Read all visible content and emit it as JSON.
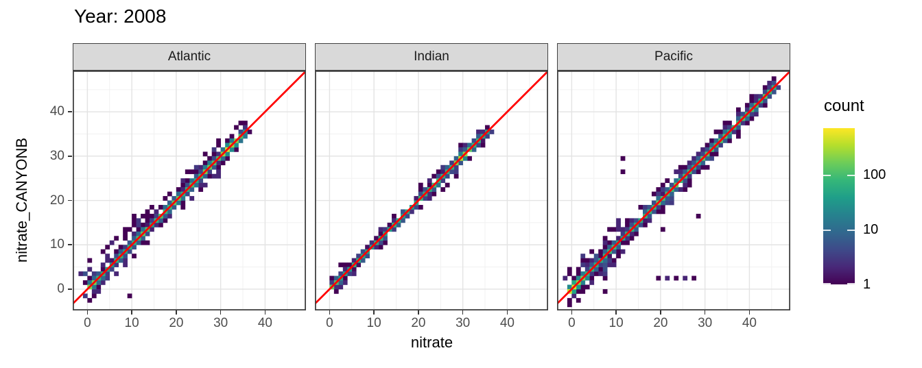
{
  "title": "Year: 2008",
  "axes": {
    "x": {
      "label": "nitrate",
      "ticks": [
        0,
        10,
        20,
        30,
        40
      ],
      "minor_ticks": [
        5,
        15,
        25,
        35,
        45
      ],
      "limits": [
        -3.3,
        49.2
      ]
    },
    "y": {
      "label": "nitrate_CANYONB",
      "ticks": [
        0,
        10,
        20,
        30,
        40
      ],
      "minor_ticks": [
        5,
        15,
        25,
        35,
        45
      ],
      "limits": [
        -4.8,
        49.3
      ]
    }
  },
  "legend": {
    "title": "count",
    "ticks": [
      100,
      10,
      1
    ],
    "scale": "log10",
    "max_log10": 2.85,
    "viridis_stops": [
      "#440154",
      "#482878",
      "#3E4A89",
      "#31688E",
      "#26828E",
      "#1F9E89",
      "#35B779",
      "#6DCD59",
      "#B4DE2C",
      "#FDE725"
    ]
  },
  "style": {
    "identity_line_color": "#FF0000",
    "strip_bg": "#D9D9D9",
    "panel_border": "#404040",
    "grid_major": "#E3E3E3",
    "grid_minor": "#F1F1F1",
    "tick_label_color": "#4D4D4D",
    "tick_mark_color": "#333333"
  },
  "chart_data": {
    "type": "heatmap",
    "subtype": "geom_bin2d scatter of nitrate_CANYONB vs nitrate, faceted by ocean",
    "title": "Year: 2008",
    "xlabel": "nitrate",
    "ylabel": "nitrate_CANYONB",
    "xlim": [
      -3.3,
      49.2
    ],
    "ylim": [
      -4.8,
      49.3
    ],
    "bin_size": 1,
    "count_scale": "log10, 1 to ~700",
    "identity_line": {
      "equation": "y = x",
      "color": "#FF0000"
    },
    "facets": [
      {
        "name": "Atlantic",
        "seed": 7,
        "diag_range": [
          0,
          36
        ],
        "spread": 1.0,
        "hotspots": [
          [
            0.5,
            260
          ],
          [
            2,
            90
          ],
          [
            12.5,
            150
          ],
          [
            16.5,
            120
          ],
          [
            20,
            140
          ],
          [
            23,
            100
          ],
          [
            27,
            190
          ],
          [
            29,
            150
          ],
          [
            31.5,
            430
          ],
          [
            33,
            240
          ]
        ],
        "clouds": [
          [
            3,
            15,
            1.5,
            5.5,
            1,
            22
          ],
          [
            1,
            9,
            1.5,
            3.5,
            -1,
            8
          ],
          [
            17,
            30,
            1.5,
            4,
            1,
            16
          ],
          [
            18,
            32,
            1.5,
            4,
            -1,
            12
          ],
          [
            -1.5,
            2.5,
            0.8,
            4.5,
            1,
            7
          ],
          [
            -1,
            2,
            0.8,
            2,
            -1,
            4
          ]
        ],
        "outliers": [
          [
            9,
            -1.3
          ],
          [
            8,
            13.5
          ],
          [
            6,
            11
          ],
          [
            10.5,
            16
          ],
          [
            4,
            9
          ],
          [
            0.5,
            6.5
          ],
          [
            -0.5,
            3.5
          ]
        ]
      },
      {
        "name": "Indian",
        "seed": 13,
        "diag_range": [
          0,
          35.5
        ],
        "spread": 0.3,
        "hotspots": [
          [
            0.5,
            160
          ],
          [
            5,
            50
          ],
          [
            8.5,
            60
          ],
          [
            12,
            55
          ],
          [
            15,
            70
          ],
          [
            18,
            60
          ],
          [
            21,
            85
          ],
          [
            24,
            95
          ],
          [
            26,
            70
          ],
          [
            29.5,
            300
          ],
          [
            31,
            160
          ],
          [
            33,
            90
          ]
        ],
        "clouds": [
          [
            20,
            26,
            1.2,
            2.6,
            1,
            7
          ],
          [
            26,
            33,
            1.2,
            2.2,
            -1,
            6
          ],
          [
            3,
            18,
            1.2,
            1.6,
            0,
            5
          ],
          [
            29,
            34,
            1.2,
            2.4,
            1,
            5
          ]
        ],
        "outliers": [
          [
            26,
            23.5
          ],
          [
            2.5,
            5
          ]
        ]
      },
      {
        "name": "Pacific",
        "seed": 21,
        "diag_range": [
          -1,
          45.5
        ],
        "spread": 1.1,
        "hotspots": [
          [
            0,
            520
          ],
          [
            2,
            160
          ],
          [
            5,
            90
          ],
          [
            9,
            110
          ],
          [
            13,
            80
          ],
          [
            17,
            90
          ],
          [
            20,
            150
          ],
          [
            23,
            130
          ],
          [
            26,
            100
          ],
          [
            30,
            160
          ],
          [
            34,
            110
          ],
          [
            38,
            130
          ],
          [
            41,
            100
          ],
          [
            44,
            140
          ]
        ],
        "clouds": [
          [
            -1.5,
            14,
            1.5,
            5,
            1,
            26
          ],
          [
            0,
            12,
            1.5,
            4.5,
            -1,
            22
          ],
          [
            15,
            26,
            1.5,
            3.5,
            1,
            10
          ],
          [
            16,
            24,
            1.5,
            3,
            -1,
            6
          ],
          [
            28,
            45,
            1.2,
            2.4,
            0,
            12
          ],
          [
            3,
            9,
            0.8,
            3,
            -1,
            8
          ]
        ],
        "outliers": [
          [
            19.5,
            2.5
          ],
          [
            21,
            2.5
          ],
          [
            21.8,
            2.5
          ],
          [
            23,
            2.5
          ],
          [
            25,
            2.5
          ],
          [
            25.8,
            2.5
          ],
          [
            27,
            2.3
          ],
          [
            11.5,
            29.5
          ],
          [
            11.3,
            26
          ],
          [
            28.5,
            16.5
          ],
          [
            35,
            37.5
          ],
          [
            20.5,
            13.5
          ],
          [
            -1,
            4
          ],
          [
            7,
            -0.8
          ]
        ]
      }
    ]
  }
}
